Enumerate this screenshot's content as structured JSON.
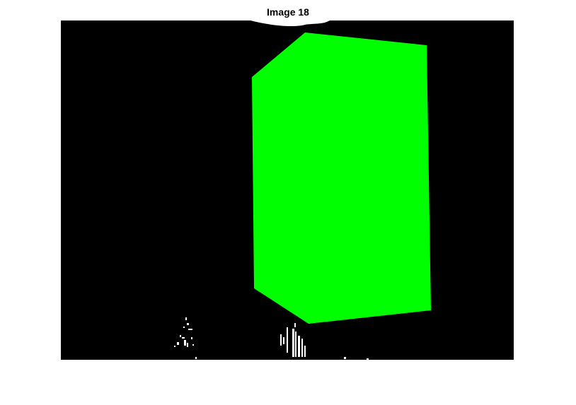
{
  "figure": {
    "title": "Image 18"
  },
  "image": {
    "background_color": "#000000",
    "page_background": "#ffffff",
    "segmented_region": {
      "label": "green-polygon-mask",
      "fill_color": "#00ff00"
    },
    "noise_color": "#ffffff"
  }
}
